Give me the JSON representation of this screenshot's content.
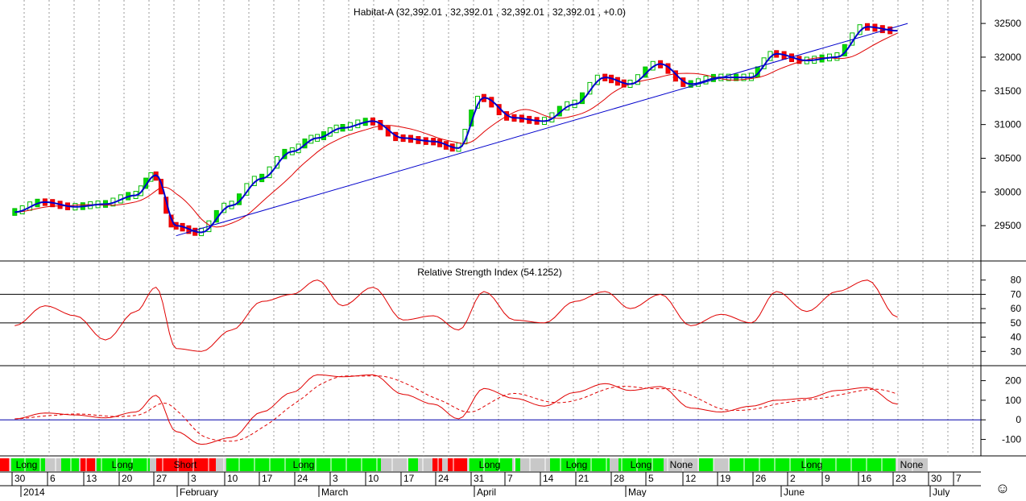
{
  "price_panel": {
    "title": "Habitat-A (32,392.01 , 32,392.01 , 32,392.01 , 32,392.01 , +0.0)",
    "y_ticks": [
      "32500",
      "32000",
      "31500",
      "31000",
      "30500",
      "30000",
      "29500"
    ]
  },
  "rsi_panel": {
    "title": "Relative Strength Index (54.1252)",
    "y_ticks": [
      "80",
      "70",
      "60",
      "50",
      "40",
      "30"
    ]
  },
  "osc_panel": {
    "y_ticks": [
      "200",
      "100",
      "0",
      "-100"
    ]
  },
  "signal_bar": {
    "labels": [
      "Long",
      "Long",
      "Short",
      "Long",
      "Long",
      "Long",
      "Long",
      "None",
      "Long",
      "None"
    ]
  },
  "date_axis": {
    "day_labels": [
      "30",
      "6",
      "13",
      "20",
      "27",
      "3",
      "10",
      "17",
      "24",
      "3",
      "10",
      "17",
      "24",
      "31",
      "7",
      "14",
      "21",
      "28",
      "5",
      "12",
      "19",
      "26",
      "2",
      "9",
      "16",
      "23",
      "30",
      "7"
    ],
    "month_labels": [
      "2014",
      "February",
      "March",
      "April",
      "May",
      "June",
      "July"
    ]
  },
  "smiley_icon": "☺",
  "chart_data": {
    "type": "line",
    "title": "Habitat-A",
    "close_value": 32392.01,
    "price_ylim": [
      29000,
      32800
    ],
    "x": [
      "2014-01-02",
      "2014-01-08",
      "2014-01-14",
      "2014-01-20",
      "2014-01-26",
      "2014-01-30",
      "2014-02-03",
      "2014-02-08",
      "2014-02-14",
      "2014-02-20",
      "2014-02-26",
      "2014-03-03",
      "2014-03-08",
      "2014-03-14",
      "2014-03-20",
      "2014-03-26",
      "2014-03-31",
      "2014-04-05",
      "2014-04-11",
      "2014-04-17",
      "2014-04-23",
      "2014-04-29",
      "2014-05-04",
      "2014-05-10",
      "2014-05-16",
      "2014-05-22",
      "2014-05-28",
      "2014-06-02",
      "2014-06-08",
      "2014-06-14",
      "2014-06-20",
      "2014-06-26"
    ],
    "series": [
      {
        "name": "price",
        "values": [
          29700,
          29850,
          29780,
          29820,
          29950,
          30250,
          29500,
          29400,
          29800,
          30200,
          30600,
          30800,
          30950,
          31050,
          30800,
          30750,
          30650,
          31400,
          31100,
          31050,
          31300,
          31700,
          31600,
          31900,
          31600,
          31700,
          31700,
          32050,
          31950,
          32000,
          32450,
          32392
        ]
      },
      {
        "name": "rsi",
        "values": [
          48,
          62,
          55,
          38,
          58,
          75,
          32,
          30,
          45,
          65,
          70,
          80,
          62,
          75,
          52,
          55,
          45,
          72,
          52,
          50,
          65,
          72,
          60,
          70,
          48,
          56,
          50,
          72,
          58,
          72,
          80,
          54
        ]
      },
      {
        "name": "oscillator",
        "values": [
          5,
          35,
          25,
          10,
          40,
          125,
          -60,
          -125,
          -90,
          40,
          140,
          230,
          220,
          230,
          130,
          80,
          5,
          160,
          110,
          70,
          140,
          185,
          150,
          170,
          60,
          40,
          70,
          100,
          110,
          150,
          165,
          80
        ]
      }
    ],
    "trendline": {
      "from": [
        "2014-02-03",
        29350
      ],
      "to": [
        "2014-06-28",
        32500
      ]
    },
    "rsi_ylim": [
      20,
      90
    ],
    "rsi_levels": [
      70,
      50
    ],
    "osc_ylim": [
      -180,
      260
    ]
  }
}
